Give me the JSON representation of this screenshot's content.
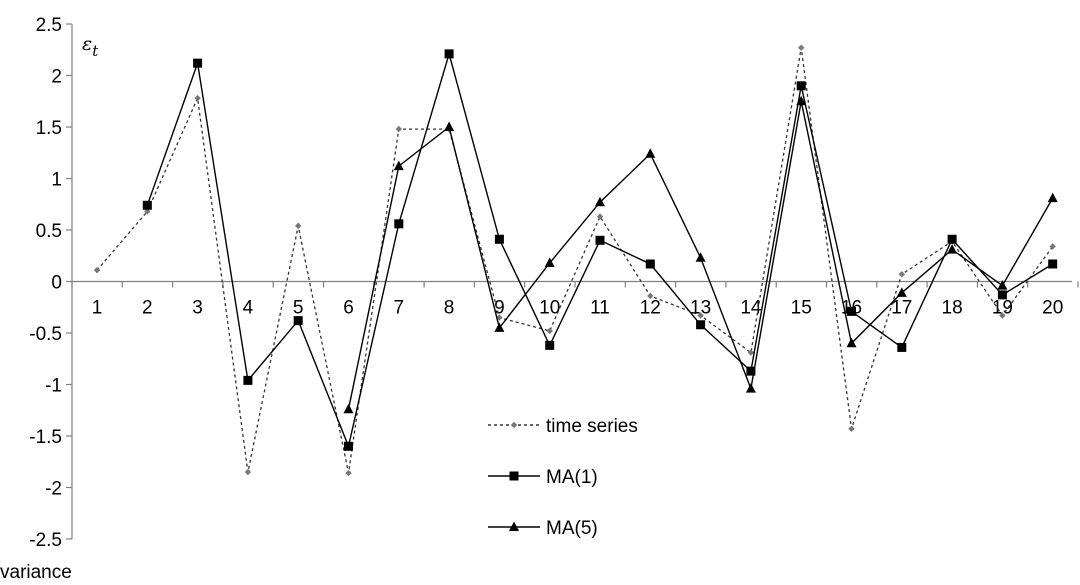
{
  "chart_data": {
    "type": "line",
    "ylabel": "εt",
    "xlabel": "",
    "x": [
      1,
      2,
      3,
      4,
      5,
      6,
      7,
      8,
      9,
      10,
      11,
      12,
      13,
      14,
      15,
      16,
      17,
      18,
      19,
      20
    ],
    "ylim": [
      -2.5,
      2.5
    ],
    "yticks": [
      -2.5,
      -2,
      -1.5,
      -1,
      -0.5,
      0,
      0.5,
      1,
      1.5,
      2,
      2.5
    ],
    "ytick_labels": [
      "-2.5",
      "-2",
      "-1.5",
      "-1",
      "-0.5",
      "0",
      "0.5",
      "1",
      "1.5",
      "2",
      "2.5"
    ],
    "grid": false,
    "legend_position": "bottom-center",
    "series": [
      {
        "name": "time series",
        "style": "dotted",
        "marker": "diamond",
        "color": "#777777",
        "values": [
          0.11,
          0.68,
          1.78,
          -1.85,
          0.54,
          -1.86,
          1.48,
          1.48,
          -0.35,
          -0.48,
          0.63,
          -0.14,
          -0.33,
          -0.69,
          2.27,
          -1.43,
          0.07,
          0.39,
          -0.33,
          0.34
        ]
      },
      {
        "name": "MA(1)",
        "style": "solid",
        "marker": "square",
        "color": "#000000",
        "values": [
          null,
          0.74,
          2.12,
          -0.96,
          -0.38,
          -1.6,
          0.56,
          2.21,
          0.41,
          -0.62,
          0.4,
          0.17,
          -0.42,
          -0.87,
          1.9,
          -0.29,
          -0.64,
          0.41,
          -0.13,
          0.17
        ]
      },
      {
        "name": "MA(5)",
        "style": "solid",
        "marker": "triangle",
        "color": "#000000",
        "values": [
          null,
          null,
          null,
          null,
          null,
          -1.24,
          1.12,
          1.5,
          -0.45,
          0.18,
          0.77,
          1.24,
          0.23,
          -1.04,
          1.75,
          -0.6,
          -0.11,
          0.31,
          -0.04,
          0.81
        ]
      }
    ]
  },
  "footer_text": "variance"
}
